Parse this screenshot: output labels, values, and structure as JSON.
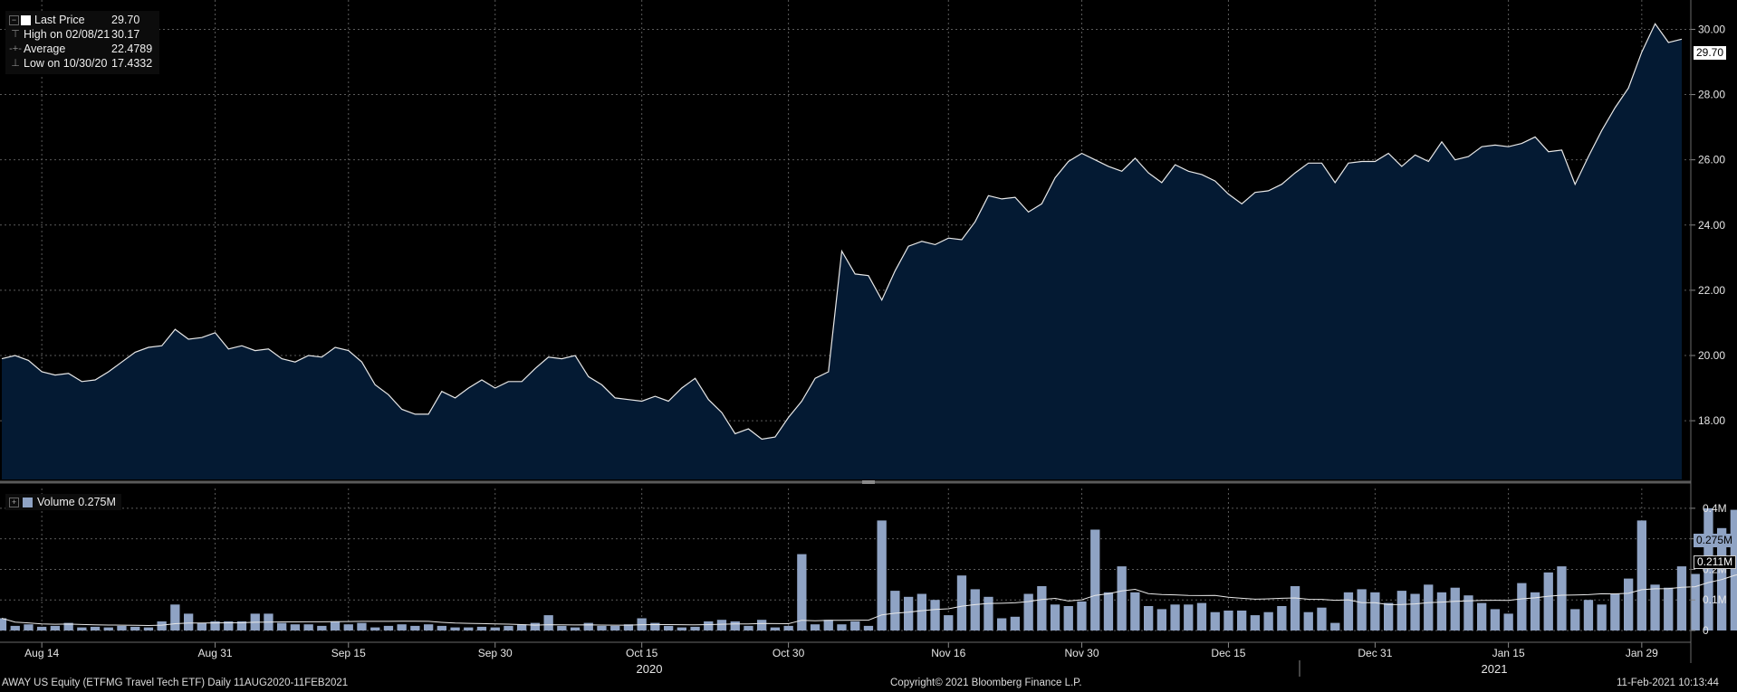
{
  "legend": {
    "last_price_label": "Last Price",
    "last_price_value": "29.70",
    "high_label": "High on 02/08/21",
    "high_value": "30.17",
    "average_label": "Average",
    "average_value": "22.4789",
    "low_label": "Low on 10/30/20",
    "low_value": "17.4332"
  },
  "volume_legend": {
    "label": "Volume",
    "value": "0.275M"
  },
  "badges": {
    "price_last": "29.70",
    "volume_last": "0.275M",
    "volume_avg": "0.211M"
  },
  "footer": {
    "left": "AWAY US Equity (ETFMG Travel Tech ETF)  Daily 11AUG2020-11FEB2021",
    "center": "Copyright© 2021 Bloomberg Finance L.P.",
    "right": "11-Feb-2021 10:13:44"
  },
  "colors": {
    "area_fill": "#041a33",
    "price_line": "#e8e8e8",
    "volume_bar": "#8fa3c4",
    "grid": "#5a5a5a"
  },
  "chart_data": [
    {
      "type": "area",
      "series_name": "Last Price",
      "y_ticks": [
        "18.00",
        "20.00",
        "22.00",
        "24.00",
        "26.00",
        "28.00",
        "30.00"
      ],
      "ylim": [
        16.2,
        30.9
      ],
      "values": [
        19.9,
        20.0,
        19.85,
        19.5,
        19.4,
        19.45,
        19.2,
        19.25,
        19.5,
        19.8,
        20.1,
        20.25,
        20.3,
        20.8,
        20.5,
        20.55,
        20.7,
        20.2,
        20.3,
        20.15,
        20.2,
        19.9,
        19.8,
        20.0,
        19.95,
        20.25,
        20.15,
        19.8,
        19.1,
        18.8,
        18.35,
        18.2,
        18.2,
        18.9,
        18.7,
        19.0,
        19.25,
        19.0,
        19.2,
        19.2,
        19.6,
        19.95,
        19.9,
        20.0,
        19.35,
        19.1,
        18.7,
        18.65,
        18.6,
        18.75,
        18.6,
        19.0,
        19.3,
        18.65,
        18.25,
        17.6,
        17.75,
        17.4332,
        17.5,
        18.1,
        18.6,
        19.3,
        19.5,
        23.2,
        22.5,
        22.45,
        21.7,
        22.6,
        23.35,
        23.5,
        23.4,
        23.6,
        23.55,
        24.1,
        24.9,
        24.8,
        24.85,
        24.4,
        24.65,
        25.45,
        25.95,
        26.2,
        26.0,
        25.8,
        25.65,
        26.05,
        25.6,
        25.3,
        25.85,
        25.65,
        25.55,
        25.35,
        24.95,
        24.65,
        25.0,
        25.05,
        25.25,
        25.6,
        25.9,
        25.9,
        25.3,
        25.9,
        25.95,
        25.95,
        26.2,
        25.8,
        26.15,
        25.95,
        26.55,
        26.0,
        26.1,
        26.4,
        26.45,
        26.4,
        26.5,
        26.7,
        26.25,
        26.3,
        25.25,
        26.1,
        26.9,
        27.6,
        28.2,
        29.3,
        30.17,
        29.6,
        29.7
      ]
    },
    {
      "type": "bar",
      "series_name": "Volume",
      "y_ticks": [
        "0",
        "0.1M",
        "0.2M",
        "0.3M",
        "0.4M"
      ],
      "ylim": [
        0,
        0.45
      ],
      "x_ticks": [
        "Aug 14",
        "Aug 31",
        "Sep 15",
        "Sep 30",
        "Oct 15",
        "Oct 30",
        "Nov 16",
        "Nov 30",
        "Dec 15",
        "Dec 31",
        "Jan 15",
        "Jan 29"
      ],
      "x_tick_index": [
        3,
        16,
        26,
        37,
        48,
        59,
        71,
        81,
        92,
        103,
        113,
        123
      ],
      "years": [
        "2020",
        "2021"
      ],
      "values": [
        0.04,
        0.015,
        0.02,
        0.012,
        0.015,
        0.025,
        0.01,
        0.012,
        0.01,
        0.015,
        0.012,
        0.01,
        0.03,
        0.085,
        0.055,
        0.025,
        0.03,
        0.03,
        0.03,
        0.055,
        0.055,
        0.025,
        0.02,
        0.02,
        0.015,
        0.03,
        0.02,
        0.025,
        0.01,
        0.015,
        0.02,
        0.015,
        0.02,
        0.015,
        0.01,
        0.01,
        0.012,
        0.01,
        0.015,
        0.02,
        0.025,
        0.05,
        0.015,
        0.01,
        0.025,
        0.015,
        0.015,
        0.02,
        0.04,
        0.025,
        0.015,
        0.01,
        0.012,
        0.03,
        0.035,
        0.03,
        0.015,
        0.035,
        0.01,
        0.015,
        0.25,
        0.02,
        0.035,
        0.02,
        0.03,
        0.015,
        0.36,
        0.13,
        0.11,
        0.12,
        0.1,
        0.05,
        0.18,
        0.135,
        0.11,
        0.04,
        0.045,
        0.12,
        0.145,
        0.085,
        0.08,
        0.095,
        0.33,
        0.125,
        0.21,
        0.125,
        0.08,
        0.07,
        0.085,
        0.085,
        0.09,
        0.06,
        0.065,
        0.065,
        0.05,
        0.06,
        0.08,
        0.145,
        0.06,
        0.075,
        0.025,
        0.125,
        0.135,
        0.125,
        0.09,
        0.13,
        0.12,
        0.15,
        0.125,
        0.14,
        0.115,
        0.09,
        0.07,
        0.055,
        0.155,
        0.125,
        0.19,
        0.21,
        0.07,
        0.1,
        0.085,
        0.12,
        0.17,
        0.36,
        0.15,
        0.14,
        0.21,
        0.185,
        0.4,
        0.335,
        0.395,
        0.275
      ]
    }
  ]
}
